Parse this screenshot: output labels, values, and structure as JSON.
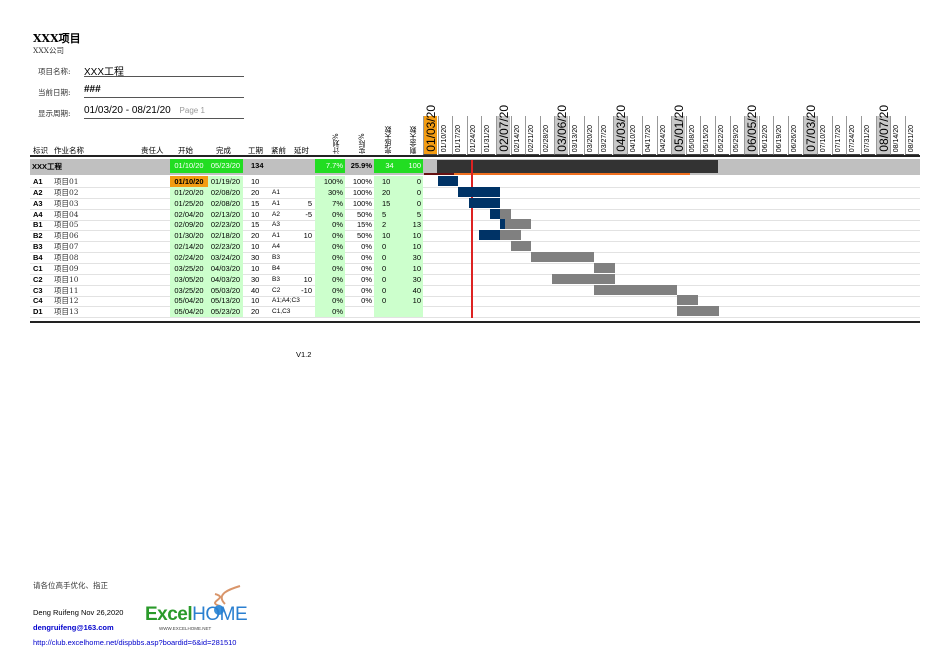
{
  "header": {
    "title": "XXX项目",
    "company": "XXX公司",
    "project_name_label": "项目名称:",
    "project_name": "XXX工程",
    "current_date_label": "当前日期:",
    "current_date": "###",
    "display_period_label": "显示周期:",
    "display_period": "01/03/20 - 08/21/20",
    "page": "Page 1"
  },
  "columns": {
    "id": "标识",
    "name": "作业名称",
    "owner": "责任人",
    "start": "开始",
    "finish": "完成",
    "duration": "工期",
    "predecessor": "紧前",
    "delay": "延时",
    "planned_pct": "计划%",
    "actual_pct": "实际%",
    "done_days": "完成天数",
    "remaining_days": "剩余天数"
  },
  "timeline_weeks": [
    "01/03/20",
    "01/10/20",
    "01/17/20",
    "01/24/20",
    "01/31/20",
    "02/07/20",
    "02/14/20",
    "02/21/20",
    "02/28/20",
    "03/06/20",
    "03/13/20",
    "03/20/20",
    "03/27/20",
    "04/03/20",
    "04/10/20",
    "04/17/20",
    "04/24/20",
    "05/01/20",
    "05/08/20",
    "05/15/20",
    "05/22/20",
    "05/29/20",
    "06/05/20",
    "06/12/20",
    "06/19/20",
    "06/26/20",
    "07/03/20",
    "07/10/20",
    "07/17/20",
    "07/24/20",
    "07/31/20",
    "08/07/20",
    "08/14/20",
    "08/21/20"
  ],
  "month_start_weeks": [
    "02/07/20",
    "03/06/20",
    "04/03/20",
    "05/01/20",
    "06/05/20",
    "07/03/20",
    "08/07/20"
  ],
  "summary": {
    "name": "XXX工程",
    "start": "01/10/20",
    "finish": "05/23/20",
    "duration": "134",
    "planned_pct": "7.7%",
    "actual_pct": "25.9%",
    "done_days": "34",
    "remaining_days": "100"
  },
  "tasks": [
    {
      "id": "A1",
      "name": "项目01",
      "start": "01/10/20",
      "finish": "01/19/20",
      "duration": "10",
      "pred": "",
      "delay": "",
      "planned": "100%",
      "actual": "100%",
      "done": "10",
      "remain": "0"
    },
    {
      "id": "A2",
      "name": "项目02",
      "start": "01/20/20",
      "finish": "02/08/20",
      "duration": "20",
      "pred": "A1",
      "delay": "",
      "planned": "30%",
      "actual": "100%",
      "done": "20",
      "remain": "0"
    },
    {
      "id": "A3",
      "name": "项目03",
      "start": "01/25/20",
      "finish": "02/08/20",
      "duration": "15",
      "pred": "A1",
      "delay": "5",
      "planned": "7%",
      "actual": "100%",
      "done": "15",
      "remain": "0"
    },
    {
      "id": "A4",
      "name": "项目04",
      "start": "02/04/20",
      "finish": "02/13/20",
      "duration": "10",
      "pred": "A2",
      "delay": "-5",
      "planned": "0%",
      "actual": "50%",
      "done": "5",
      "remain": "5"
    },
    {
      "id": "B1",
      "name": "项目05",
      "start": "02/09/20",
      "finish": "02/23/20",
      "duration": "15",
      "pred": "A3",
      "delay": "",
      "planned": "0%",
      "actual": "15%",
      "done": "2",
      "remain": "13"
    },
    {
      "id": "B2",
      "name": "项目06",
      "start": "01/30/20",
      "finish": "02/18/20",
      "duration": "20",
      "pred": "A1",
      "delay": "10",
      "planned": "0%",
      "actual": "50%",
      "done": "10",
      "remain": "10"
    },
    {
      "id": "B3",
      "name": "项目07",
      "start": "02/14/20",
      "finish": "02/23/20",
      "duration": "10",
      "pred": "A4",
      "delay": "",
      "planned": "0%",
      "actual": "0%",
      "done": "0",
      "remain": "10"
    },
    {
      "id": "B4",
      "name": "项目08",
      "start": "02/24/20",
      "finish": "03/24/20",
      "duration": "30",
      "pred": "B3",
      "delay": "",
      "planned": "0%",
      "actual": "0%",
      "done": "0",
      "remain": "30"
    },
    {
      "id": "C1",
      "name": "项目09",
      "start": "03/25/20",
      "finish": "04/03/20",
      "duration": "10",
      "pred": "B4",
      "delay": "",
      "planned": "0%",
      "actual": "0%",
      "done": "0",
      "remain": "10"
    },
    {
      "id": "C2",
      "name": "项目10",
      "start": "03/05/20",
      "finish": "04/03/20",
      "duration": "30",
      "pred": "B3",
      "delay": "10",
      "planned": "0%",
      "actual": "0%",
      "done": "0",
      "remain": "30"
    },
    {
      "id": "C3",
      "name": "项目11",
      "start": "03/25/20",
      "finish": "05/03/20",
      "duration": "40",
      "pred": "C2",
      "delay": "-10",
      "planned": "0%",
      "actual": "0%",
      "done": "0",
      "remain": "40"
    },
    {
      "id": "C4",
      "name": "项目12",
      "start": "05/04/20",
      "finish": "05/13/20",
      "duration": "10",
      "pred": "A1;A4;C3",
      "delay": "",
      "planned": "0%",
      "actual": "0%",
      "done": "0",
      "remain": "10"
    },
    {
      "id": "D1",
      "name": "项目13",
      "start": "05/04/20",
      "finish": "05/23/20",
      "duration": "20",
      "pred": "C1,C3",
      "delay": "",
      "planned": "0%",
      "actual": "",
      "done": "",
      "remain": ""
    }
  ],
  "version": "V1.2",
  "footer": {
    "note": "请各位高手优化、指正",
    "author": "Deng Ruifeng  Nov 26,2020",
    "email": "dengruifeng@163.com",
    "url": "http://club.excelhome.net/dispbbs.asp?boardid=6&id=281510",
    "logo_text": "ExcelHOME",
    "logo_sub": "WWW.EXCELHOME.NET"
  },
  "colors": {
    "done_bar": "#003366",
    "remaining_bar": "#808080",
    "today_line": "#dd2222",
    "green": "#ccffcc",
    "bright_green": "#22dd22",
    "first_week": "#f39c12",
    "summary_bar": "#333333"
  }
}
